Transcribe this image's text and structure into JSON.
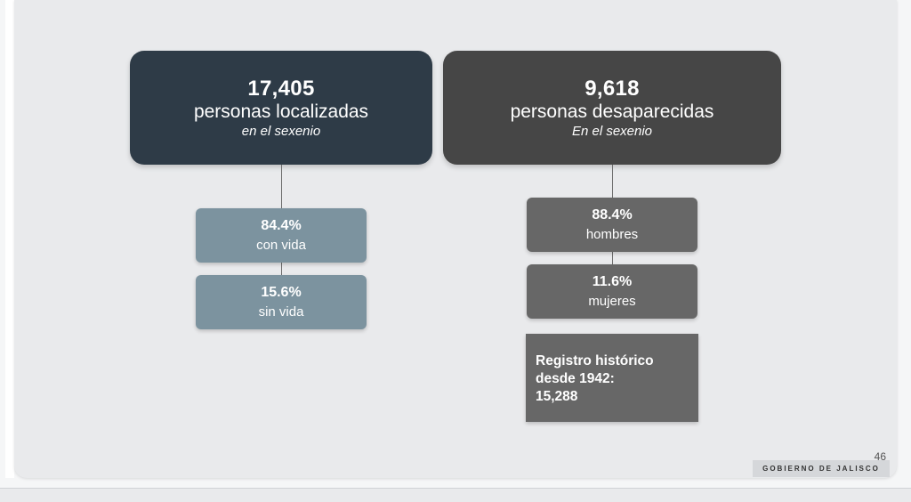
{
  "localizadas": {
    "total": "17,405",
    "label": "personas localizadas",
    "sub": "en el sexenio",
    "breakdown": [
      {
        "pct": "84.4%",
        "label": "con vida"
      },
      {
        "pct": "15.6%",
        "label": "sin vida"
      }
    ]
  },
  "desaparecidas": {
    "total": "9,618",
    "label": "personas desaparecidas",
    "sub": "En el sexenio",
    "breakdown": [
      {
        "pct": "88.4%",
        "label": "hombres"
      },
      {
        "pct": "11.6%",
        "label": "mujeres"
      }
    ],
    "historico": {
      "line1": "Registro histórico",
      "line2": "desde 1942:",
      "line3": "15,288"
    }
  },
  "footer": {
    "page_number": "46",
    "brand": "GOBIERNO DE JALISCO"
  },
  "colors": {
    "localizadas_header": "#2e3b47",
    "desaparecidas_header": "#464646",
    "localizadas_sub": "#7c939f",
    "desaparecidas_sub": "#676767"
  }
}
